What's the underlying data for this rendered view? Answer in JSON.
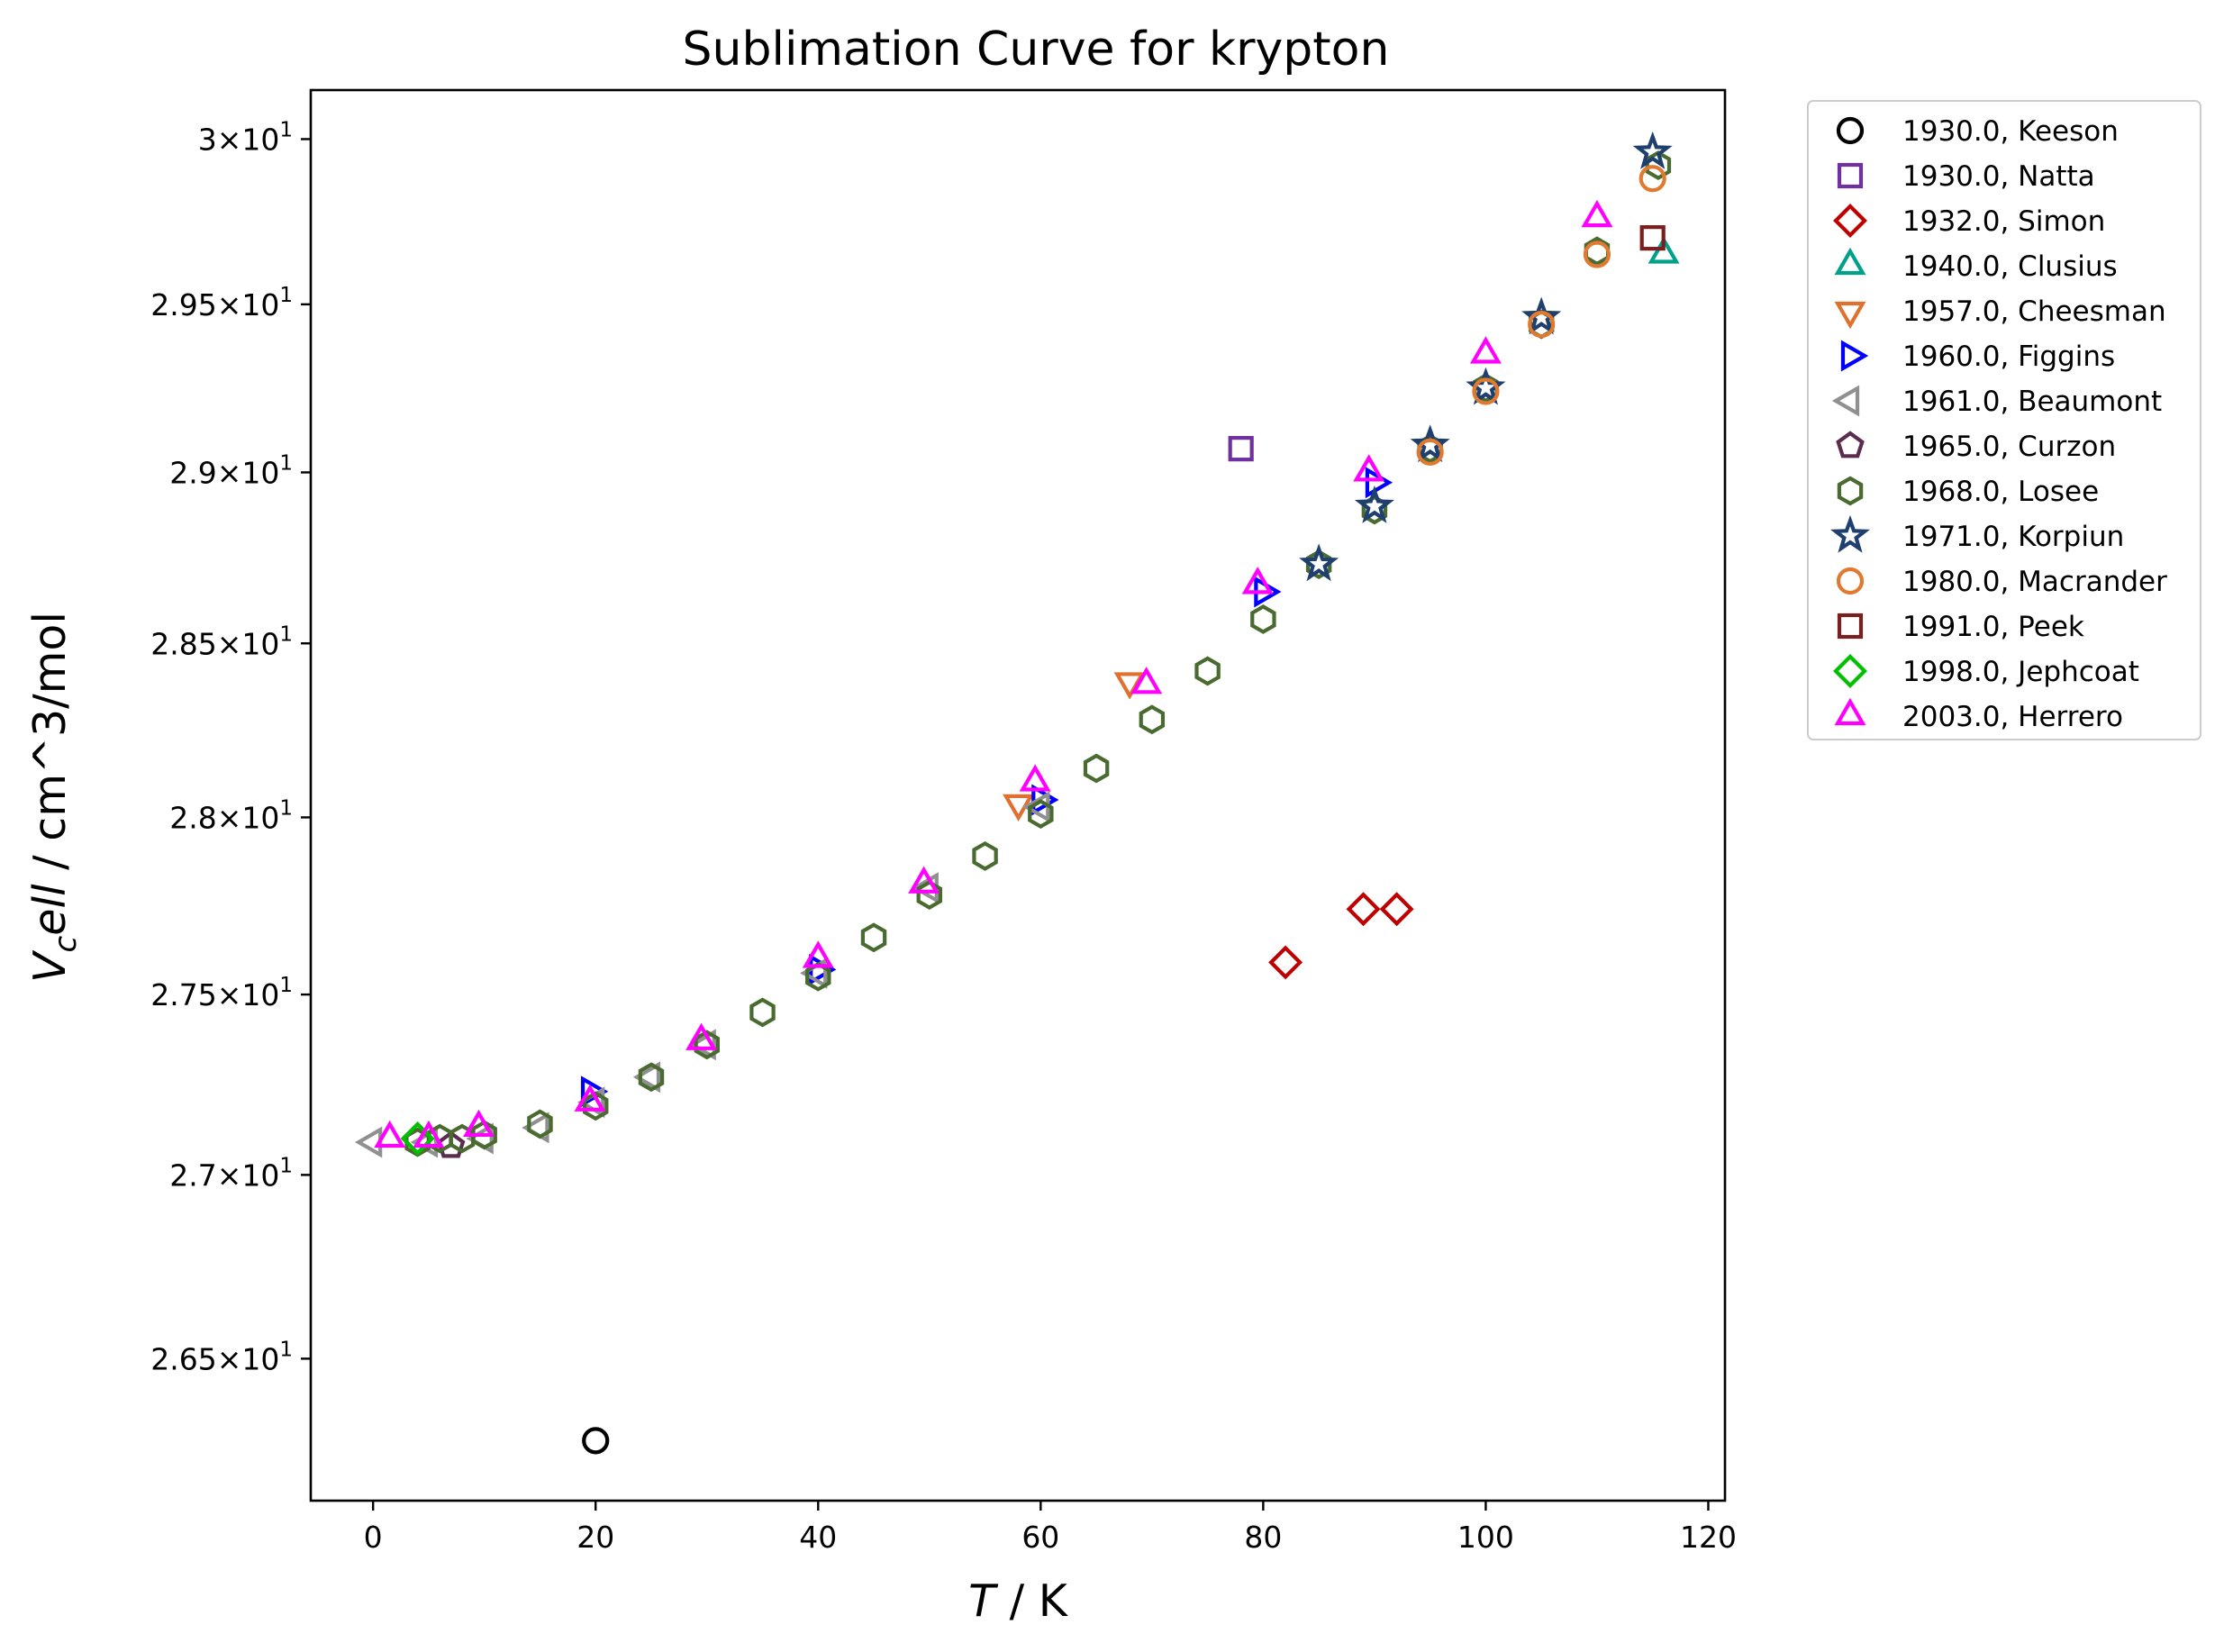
{
  "chart_data": {
    "type": "scatter",
    "title": "Sublimation Curve for krypton",
    "xlabel": {
      "italic": "T",
      "rest": " / K"
    },
    "ylabel": {
      "italic_main": "V",
      "italic_sub": "c",
      "italic_tail": "ell",
      "rest": " / cm^3/mol"
    },
    "xlim": [
      -5.6,
      121.5
    ],
    "ylim": [
      26.12,
      30.15
    ],
    "y_scale": "log",
    "xticks": [
      0,
      20,
      40,
      60,
      80,
      100,
      120
    ],
    "yticks": [
      {
        "value": 26.5,
        "mant": "2.65",
        "exp": "1"
      },
      {
        "value": 27.0,
        "mant": "2.7",
        "exp": "1"
      },
      {
        "value": 27.5,
        "mant": "2.75",
        "exp": "1"
      },
      {
        "value": 28.0,
        "mant": "2.8",
        "exp": "1"
      },
      {
        "value": 28.5,
        "mant": "2.85",
        "exp": "1"
      },
      {
        "value": 29.0,
        "mant": "2.9",
        "exp": "1"
      },
      {
        "value": 29.5,
        "mant": "2.95",
        "exp": "1"
      },
      {
        "value": 30.0,
        "mant": "3",
        "exp": "1"
      }
    ],
    "legend_position": "outside-right",
    "series": [
      {
        "name": "1930.0, Keeson",
        "marker": "circle",
        "color": "#000000",
        "points": [
          [
            20,
            26.28
          ]
        ]
      },
      {
        "name": "1930.0, Natta",
        "marker": "square",
        "color": "#7030a0",
        "points": [
          [
            78,
            29.07
          ]
        ]
      },
      {
        "name": "1932.0, Simon",
        "marker": "diamond",
        "color": "#c00000",
        "points": [
          [
            82,
            27.59
          ],
          [
            89,
            27.74
          ],
          [
            92,
            27.74
          ]
        ]
      },
      {
        "name": "1940.0, Clusius",
        "marker": "triangle-up",
        "color": "#00a08a",
        "points": [
          [
            116,
            29.65
          ]
        ]
      },
      {
        "name": "1957.0, Cheesman",
        "marker": "triangle-down",
        "color": "#e07030",
        "points": [
          [
            58,
            28.04
          ],
          [
            68,
            28.39
          ]
        ]
      },
      {
        "name": "1960.0, Figgins",
        "marker": "triangle-right",
        "color": "#0000ff",
        "points": [
          [
            19.5,
            27.23
          ],
          [
            40,
            27.57
          ],
          [
            60,
            28.05
          ],
          [
            80,
            28.65
          ],
          [
            90,
            28.97
          ]
        ]
      },
      {
        "name": "1961.0, Beaumont",
        "marker": "triangle-left",
        "color": "#909090",
        "points": [
          [
            0,
            27.09
          ],
          [
            5,
            27.09
          ],
          [
            10,
            27.1
          ],
          [
            15,
            27.13
          ],
          [
            20,
            27.2
          ],
          [
            25,
            27.27
          ],
          [
            30,
            27.36
          ],
          [
            40,
            27.56
          ],
          [
            50,
            27.8
          ],
          [
            60,
            28.03
          ]
        ]
      },
      {
        "name": "1965.0, Curzon",
        "marker": "pentagon",
        "color": "#5a2d4e",
        "points": [
          [
            7,
            27.08
          ]
        ]
      },
      {
        "name": "1968.0, Losee",
        "marker": "hexagon",
        "color": "#4a6b30",
        "points": [
          [
            4,
            27.09
          ],
          [
            6,
            27.1
          ],
          [
            8,
            27.1
          ],
          [
            10,
            27.11
          ],
          [
            15,
            27.14
          ],
          [
            20,
            27.19
          ],
          [
            25,
            27.27
          ],
          [
            30,
            27.36
          ],
          [
            35,
            27.45
          ],
          [
            40,
            27.55
          ],
          [
            45,
            27.66
          ],
          [
            50,
            27.78
          ],
          [
            55,
            27.89
          ],
          [
            60,
            28.01
          ],
          [
            65,
            28.14
          ],
          [
            70,
            28.28
          ],
          [
            75,
            28.42
          ],
          [
            80,
            28.57
          ],
          [
            85,
            28.73
          ],
          [
            90,
            28.89
          ],
          [
            95,
            29.07
          ],
          [
            100,
            29.25
          ],
          [
            105,
            29.44
          ],
          [
            110,
            29.66
          ],
          [
            115.5,
            29.92
          ]
        ]
      },
      {
        "name": "1971.0, Korpiun",
        "marker": "star",
        "color": "#1f3f6e",
        "points": [
          [
            85,
            28.73
          ],
          [
            90,
            28.9
          ],
          [
            95,
            29.08
          ],
          [
            100,
            29.25
          ],
          [
            105,
            29.46
          ],
          [
            115,
            29.96
          ]
        ]
      },
      {
        "name": "1980.0, Macrander",
        "marker": "circle",
        "color": "#e07a30",
        "points": [
          [
            95,
            29.06
          ],
          [
            100,
            29.24
          ],
          [
            105,
            29.44
          ],
          [
            110,
            29.65
          ],
          [
            115,
            29.88
          ]
        ]
      },
      {
        "name": "1991.0, Peek",
        "marker": "square",
        "color": "#7a1f1f",
        "points": [
          [
            115,
            29.7
          ]
        ]
      },
      {
        "name": "1998.0, Jephcoat",
        "marker": "diamond",
        "color": "#00c000",
        "points": [
          [
            4,
            27.1
          ]
        ]
      },
      {
        "name": "2003.0, Herrero",
        "marker": "triangle-up",
        "color": "#ff00ff",
        "points": [
          [
            1.5,
            27.1
          ],
          [
            5,
            27.1
          ],
          [
            9.5,
            27.13
          ],
          [
            19.5,
            27.2
          ],
          [
            29.5,
            27.37
          ],
          [
            40,
            27.6
          ],
          [
            49.5,
            27.81
          ],
          [
            59.5,
            28.1
          ],
          [
            69.5,
            28.38
          ],
          [
            79.5,
            28.67
          ],
          [
            89.5,
            29.0
          ],
          [
            100,
            29.35
          ],
          [
            110,
            29.76
          ]
        ]
      }
    ]
  }
}
